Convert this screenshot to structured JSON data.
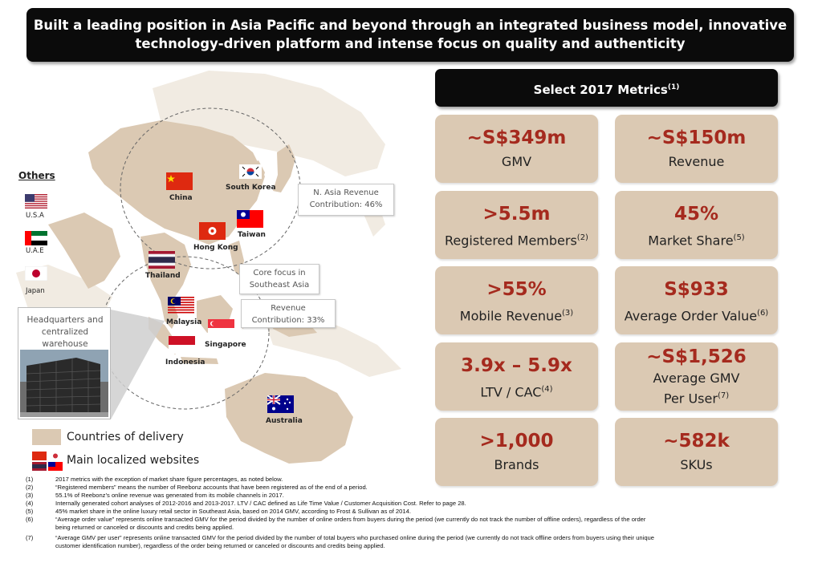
{
  "banner": {
    "line1": "Built a leading position in Asia Pacific and beyond through an integrated business model, innovative",
    "line2": "technology-driven platform and intense focus on quality and authenticity"
  },
  "metrics_header": {
    "title": "Select 2017 Metrics",
    "sup": "(1)"
  },
  "metrics": [
    {
      "value": "~S$349m",
      "label": "GMV",
      "sup": ""
    },
    {
      "value": "~S$150m",
      "label": "Revenue",
      "sup": ""
    },
    {
      "value": ">5.5m",
      "label": "Registered Members",
      "sup": "(2)"
    },
    {
      "value": "45%",
      "label": "Market Share",
      "sup": "(5)"
    },
    {
      "value": ">55%",
      "label": "Mobile Revenue",
      "sup": "(3)"
    },
    {
      "value": "S$933",
      "label": "Average Order Value",
      "sup": "(6)"
    },
    {
      "value": "3.9x – 5.9x",
      "label": "LTV / CAC",
      "sup": "(4)"
    },
    {
      "value": "~S$1,526",
      "label": "Average GMV",
      "label2": "Per User",
      "sup": "(7)"
    },
    {
      "value": ">1,000",
      "label": "Brands",
      "sup": ""
    },
    {
      "value": "~582k",
      "label": "SKUs",
      "sup": ""
    }
  ],
  "map": {
    "countries": {
      "china": "China",
      "south_korea": "South Korea",
      "taiwan": "Taiwan",
      "hong_kong": "Hong Kong",
      "thailand": "Thailand",
      "malaysia": "Malaysia",
      "singapore": "Singapore",
      "indonesia": "Indonesia",
      "australia": "Australia"
    },
    "callouts": {
      "n_asia_1": "N. Asia Revenue",
      "n_asia_2": "Contribution: 46%",
      "core_1": "Core focus in",
      "core_2": "Southeast Asia",
      "rev_1": "Revenue",
      "rev_2": "Contribution: 33%"
    },
    "others": {
      "title": "Others",
      "usa": "U.S.A",
      "uae": "U.A.E",
      "japan": "Japan"
    },
    "hq": {
      "line1": "Headquarters and",
      "line2": "centralized",
      "line3": "warehouse"
    },
    "legend": {
      "delivery": "Countries of delivery",
      "websites": "Main localized websites"
    },
    "colors": {
      "land": "#dbc9b3",
      "sea_land_light": "#f1ebe2",
      "accent": "#a52a1e"
    }
  },
  "footnotes": [
    {
      "num": "(1)",
      "text": "2017 metrics with the exception of market share figure percentages, as noted below."
    },
    {
      "num": "(2)",
      "text": "“Registered members” means the number of Reebonz accounts that have been registered as of the end of a period."
    },
    {
      "num": "(3)",
      "text": "55.1% of Reebonz’s online revenue was generated from its mobile channels in 2017."
    },
    {
      "num": "(4)",
      "text": "Internally generated cohort analyses of 2012-2016 and 2013-2017. LTV / CAC defined as Life Time Value / Customer Acquisition Cost. Refer to page 28."
    },
    {
      "num": "(5)",
      "text": "45% market share in the online luxury retail sector in Southeast Asia, based on 2014 GMV, according to Frost & Sullivan as of 2014."
    },
    {
      "num": "(6)",
      "text": "“Average order value” represents online transacted GMV for the period divided by the number of online orders from buyers during the period (we currently do not track the number of offline orders), regardless of the order",
      "text2": "being returned or canceled or discounts and credits being applied."
    },
    {
      "num": "(7)",
      "text": "“Average GMV per user” represents online transacted GMV for the period divided by the number of total buyers who purchased online during the period (we currently do not track offline orders from buyers using their unique",
      "text2": "customer identification number), regardless of the order being returned or canceled or discounts and credits being applied."
    }
  ]
}
